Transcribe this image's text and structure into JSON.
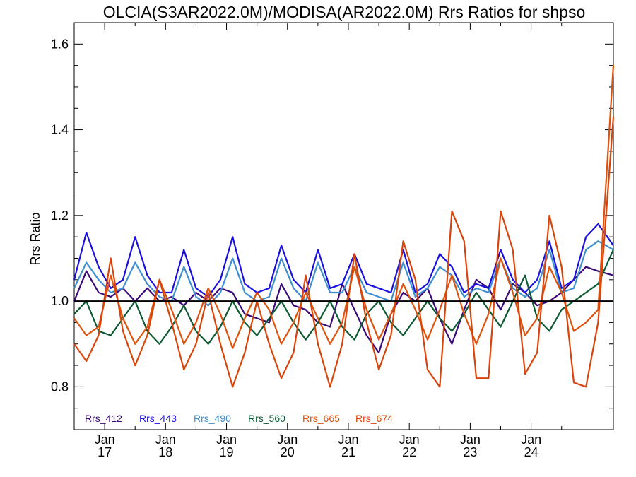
{
  "chart_data": {
    "type": "line",
    "title": "OLCIA(S3AR2022.0M)/MODISA(AR2022.0M)  Rrs Ratios for shpso",
    "xlabel": "",
    "ylabel": "Rrs Ratio",
    "ylim": [
      0.7,
      1.65
    ],
    "y_ticks": [
      0.8,
      1.0,
      1.2,
      1.4,
      1.6
    ],
    "y_tick_labels": [
      "0.8",
      "1.0",
      "1.2",
      "1.4",
      "1.6"
    ],
    "xlim": [
      2016.0,
      2024.85
    ],
    "x_ticks": [
      {
        "x": 2016.5,
        "line1": "Jan",
        "line2": "17"
      },
      {
        "x": 2017.5,
        "line1": "Jan",
        "line2": "18"
      },
      {
        "x": 2018.5,
        "line1": "Jan",
        "line2": "19"
      },
      {
        "x": 2019.5,
        "line1": "Jan",
        "line2": "20"
      },
      {
        "x": 2020.5,
        "line1": "Jan",
        "line2": "21"
      },
      {
        "x": 2021.5,
        "line1": "Jan",
        "line2": "22"
      },
      {
        "x": 2022.5,
        "line1": "Jan",
        "line2": "23"
      },
      {
        "x": 2023.5,
        "line1": "Jan",
        "line2": "24"
      }
    ],
    "reference_line": 1.0,
    "legend_placement": "bottom-left",
    "series": [
      {
        "name": "Rrs_412",
        "color": "#3b0a78",
        "x": [
          2016.0,
          2016.2,
          2016.4,
          2016.6,
          2016.8,
          2017.0,
          2017.2,
          2017.4,
          2017.6,
          2017.8,
          2018.0,
          2018.2,
          2018.4,
          2018.6,
          2018.8,
          2019.0,
          2019.2,
          2019.4,
          2019.6,
          2019.8,
          2020.0,
          2020.2,
          2020.4,
          2020.6,
          2020.8,
          2021.0,
          2021.2,
          2021.4,
          2021.6,
          2021.8,
          2022.0,
          2022.2,
          2022.4,
          2022.6,
          2022.8,
          2023.0,
          2023.2,
          2023.4,
          2023.6,
          2023.8,
          2024.0,
          2024.2,
          2024.4,
          2024.6,
          2024.85
        ],
        "y": [
          1.0,
          1.07,
          1.02,
          1.01,
          1.03,
          1.0,
          1.03,
          1.0,
          1.01,
          0.99,
          1.02,
          1.0,
          1.03,
          1.02,
          0.97,
          0.96,
          0.95,
          1.04,
          0.99,
          0.98,
          0.95,
          0.94,
          1.04,
          0.98,
          0.92,
          0.88,
          0.97,
          1.02,
          1.0,
          1.03,
          0.96,
          0.9,
          0.98,
          1.05,
          1.03,
          0.98,
          1.04,
          1.02,
          0.99,
          1.0,
          1.02,
          1.05,
          1.08,
          1.07,
          1.06
        ]
      },
      {
        "name": "Rrs_443",
        "color": "#1a10e0",
        "x": [
          2016.0,
          2016.2,
          2016.4,
          2016.6,
          2016.8,
          2017.0,
          2017.2,
          2017.4,
          2017.6,
          2017.8,
          2018.0,
          2018.2,
          2018.4,
          2018.6,
          2018.8,
          2019.0,
          2019.2,
          2019.4,
          2019.6,
          2019.8,
          2020.0,
          2020.2,
          2020.4,
          2020.6,
          2020.8,
          2021.0,
          2021.2,
          2021.4,
          2021.6,
          2021.8,
          2022.0,
          2022.2,
          2022.4,
          2022.6,
          2022.8,
          2023.0,
          2023.2,
          2023.4,
          2023.6,
          2023.8,
          2024.0,
          2024.2,
          2024.4,
          2024.6,
          2024.85
        ],
        "y": [
          1.05,
          1.16,
          1.08,
          1.03,
          1.05,
          1.15,
          1.06,
          1.02,
          1.02,
          1.12,
          1.03,
          1.01,
          1.05,
          1.15,
          1.04,
          1.02,
          1.03,
          1.13,
          1.05,
          1.02,
          1.12,
          1.03,
          1.04,
          1.11,
          1.04,
          1.03,
          1.02,
          1.12,
          1.02,
          1.04,
          1.11,
          1.08,
          1.02,
          1.04,
          1.03,
          1.12,
          1.05,
          1.02,
          1.05,
          1.14,
          1.03,
          1.05,
          1.15,
          1.18,
          1.13
        ]
      },
      {
        "name": "Rrs_490",
        "color": "#3d8fd0",
        "x": [
          2016.0,
          2016.2,
          2016.4,
          2016.6,
          2016.8,
          2017.0,
          2017.2,
          2017.4,
          2017.6,
          2017.8,
          2018.0,
          2018.2,
          2018.4,
          2018.6,
          2018.8,
          2019.0,
          2019.2,
          2019.4,
          2019.6,
          2019.8,
          2020.0,
          2020.2,
          2020.4,
          2020.6,
          2020.8,
          2021.0,
          2021.2,
          2021.4,
          2021.6,
          2021.8,
          2022.0,
          2022.2,
          2022.4,
          2022.6,
          2022.8,
          2023.0,
          2023.2,
          2023.4,
          2023.6,
          2023.8,
          2024.0,
          2024.2,
          2024.4,
          2024.6,
          2024.85
        ],
        "y": [
          1.03,
          1.09,
          1.05,
          1.02,
          1.03,
          1.09,
          1.04,
          1.01,
          1.0,
          1.08,
          1.01,
          0.99,
          1.02,
          1.1,
          1.02,
          1.0,
          1.01,
          1.1,
          1.03,
          1.0,
          1.09,
          1.02,
          1.02,
          1.08,
          1.02,
          1.01,
          1.0,
          1.09,
          1.01,
          1.03,
          1.08,
          1.06,
          1.01,
          1.03,
          1.02,
          1.1,
          1.03,
          1.01,
          1.03,
          1.12,
          1.02,
          1.03,
          1.12,
          1.14,
          1.12
        ]
      },
      {
        "name": "Rrs_560",
        "color": "#0b5a32",
        "x": [
          2016.0,
          2016.2,
          2016.4,
          2016.6,
          2016.8,
          2017.0,
          2017.2,
          2017.4,
          2017.6,
          2017.8,
          2018.0,
          2018.2,
          2018.4,
          2018.6,
          2018.8,
          2019.0,
          2019.2,
          2019.4,
          2019.6,
          2019.8,
          2020.0,
          2020.2,
          2020.4,
          2020.6,
          2020.8,
          2021.0,
          2021.2,
          2021.4,
          2021.6,
          2021.8,
          2022.0,
          2022.2,
          2022.4,
          2022.6,
          2022.8,
          2023.0,
          2023.2,
          2023.4,
          2023.6,
          2023.8,
          2024.0,
          2024.2,
          2024.4,
          2024.6,
          2024.85
        ],
        "y": [
          0.97,
          1.0,
          0.93,
          0.92,
          0.96,
          1.0,
          0.93,
          0.9,
          0.94,
          0.99,
          0.93,
          0.9,
          0.94,
          1.0,
          0.95,
          0.92,
          0.96,
          1.0,
          0.95,
          0.91,
          0.95,
          1.0,
          0.94,
          0.91,
          0.97,
          1.0,
          0.95,
          0.92,
          0.96,
          1.0,
          0.96,
          0.93,
          0.97,
          1.02,
          0.98,
          0.94,
          1.0,
          1.06,
          0.96,
          0.93,
          0.98,
          1.0,
          1.02,
          1.04,
          1.12
        ]
      },
      {
        "name": "Rrs_665",
        "color": "#e0520c",
        "x": [
          2016.0,
          2016.2,
          2016.4,
          2016.6,
          2016.8,
          2017.0,
          2017.2,
          2017.4,
          2017.6,
          2017.8,
          2018.0,
          2018.2,
          2018.4,
          2018.6,
          2018.8,
          2019.0,
          2019.2,
          2019.4,
          2019.6,
          2019.8,
          2020.0,
          2020.2,
          2020.4,
          2020.6,
          2020.8,
          2021.0,
          2021.2,
          2021.4,
          2021.6,
          2021.8,
          2022.0,
          2022.2,
          2022.4,
          2022.6,
          2022.8,
          2023.0,
          2023.2,
          2023.4,
          2023.6,
          2023.8,
          2024.0,
          2024.2,
          2024.4,
          2024.6,
          2024.85
        ],
        "y": [
          0.96,
          0.92,
          0.94,
          1.06,
          0.96,
          0.9,
          0.94,
          1.05,
          0.98,
          0.9,
          0.95,
          1.03,
          0.97,
          0.89,
          0.96,
          1.02,
          0.98,
          0.9,
          0.95,
          1.02,
          0.96,
          0.9,
          0.95,
          1.08,
          0.98,
          0.91,
          0.97,
          1.04,
          0.98,
          0.91,
          0.98,
          1.06,
          0.97,
          0.9,
          0.97,
          1.1,
          1.02,
          0.92,
          0.96,
          1.08,
          1.02,
          0.93,
          0.95,
          0.98,
          1.55
        ]
      },
      {
        "name": "Rrs_674",
        "color": "#d9440a",
        "x": [
          2016.0,
          2016.2,
          2016.4,
          2016.6,
          2016.8,
          2017.0,
          2017.2,
          2017.4,
          2017.6,
          2017.8,
          2018.0,
          2018.2,
          2018.4,
          2018.6,
          2018.8,
          2019.0,
          2019.2,
          2019.4,
          2019.6,
          2019.8,
          2020.0,
          2020.2,
          2020.4,
          2020.6,
          2020.8,
          2021.0,
          2021.2,
          2021.4,
          2021.6,
          2021.8,
          2022.0,
          2022.2,
          2022.4,
          2022.6,
          2022.8,
          2023.0,
          2023.2,
          2023.4,
          2023.6,
          2023.8,
          2024.0,
          2024.2,
          2024.4,
          2024.6,
          2024.85
        ],
        "y": [
          0.9,
          0.86,
          0.92,
          1.1,
          0.93,
          0.85,
          0.92,
          1.05,
          0.95,
          0.84,
          0.9,
          1.02,
          0.9,
          0.8,
          0.88,
          1.0,
          0.9,
          0.82,
          0.88,
          1.06,
          0.9,
          0.8,
          0.9,
          1.11,
          0.95,
          0.84,
          0.92,
          1.14,
          1.05,
          0.84,
          0.8,
          1.21,
          1.14,
          0.82,
          0.82,
          1.21,
          1.12,
          0.83,
          0.88,
          1.2,
          1.08,
          0.81,
          0.8,
          0.95,
          1.43
        ]
      }
    ]
  }
}
